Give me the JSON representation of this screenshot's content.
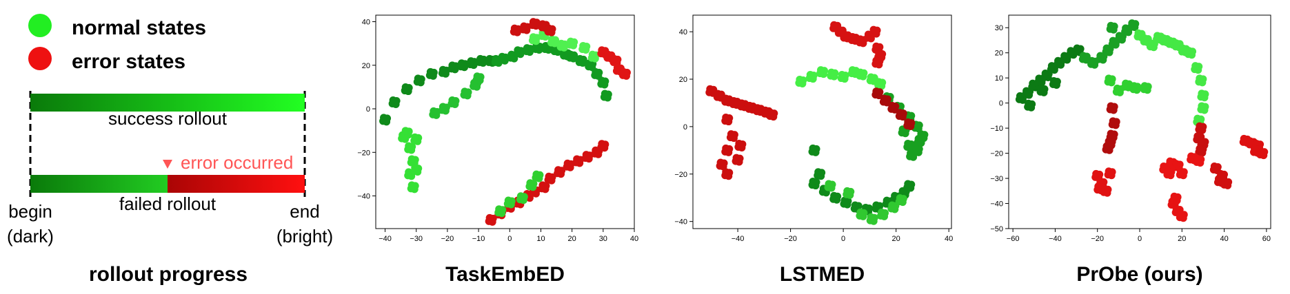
{
  "legend": {
    "normal_label": "normal states",
    "error_label": "error states",
    "normal_color": "#22ee22",
    "error_color": "#ee1111",
    "success_label": "success rollout",
    "failed_label": "failed rollout",
    "error_marker_label": "error occurred",
    "error_marker_color": "#ff5555",
    "begin_label": "begin",
    "begin_sub": "(dark)",
    "end_label": "end",
    "end_sub": "(bright)",
    "caption": "rollout progress",
    "gradient": {
      "success_dark": "#0a7a0a",
      "success_bright": "#22ff22",
      "failed_dark_green": "#0a7a0a",
      "failed_mid_green": "#22cc22",
      "failed_dark_red": "#aa0505",
      "failed_bright_red": "#ff1010",
      "error_fraction": 0.5
    }
  },
  "chart_data": [
    {
      "type": "scatter",
      "title": "TaskEmbED",
      "xlim": [
        -43,
        40
      ],
      "ylim": [
        -55,
        43
      ],
      "xticks": [
        -40,
        -30,
        -20,
        -10,
        0,
        10,
        20,
        30,
        40
      ],
      "yticks": [
        -40,
        -20,
        0,
        20,
        40
      ],
      "clusters": [
        {
          "state": "normal",
          "shade": "#0f8a1a",
          "points": [
            [
              -40,
              -5
            ],
            [
              -37,
              3
            ],
            [
              -33,
              9
            ],
            [
              -29,
              13
            ],
            [
              -25,
              16
            ],
            [
              -21,
              17
            ],
            [
              -18,
              19
            ],
            [
              -15,
              20
            ],
            [
              -12,
              21
            ],
            [
              -9,
              22
            ],
            [
              -6,
              22
            ]
          ]
        },
        {
          "state": "normal",
          "shade": "#129a20",
          "points": [
            [
              -4,
              22
            ],
            [
              -2,
              23
            ],
            [
              1,
              24
            ],
            [
              3,
              26
            ],
            [
              6,
              27
            ],
            [
              9,
              28
            ],
            [
              12,
              28
            ],
            [
              15,
              27
            ],
            [
              18,
              25
            ],
            [
              20,
              24
            ],
            [
              23,
              22
            ],
            [
              26,
              20
            ],
            [
              28,
              16
            ],
            [
              30,
              12
            ],
            [
              31,
              6
            ]
          ]
        },
        {
          "state": "normal",
          "shade": "#35e035",
          "points": [
            [
              -34,
              -13
            ],
            [
              -32,
              -18
            ],
            [
              -31,
              -24
            ],
            [
              -32,
              -30
            ],
            [
              -31,
              -36
            ],
            [
              -33,
              -11
            ],
            [
              -30,
              -14
            ],
            [
              -30,
              -28
            ]
          ]
        },
        {
          "state": "normal",
          "shade": "#25c030",
          "points": [
            [
              -24,
              -2
            ],
            [
              -21,
              0
            ],
            [
              -18,
              3
            ],
            [
              -14,
              7
            ],
            [
              -11,
              11
            ],
            [
              -10,
              14
            ]
          ]
        },
        {
          "state": "normal",
          "shade": "#50f050",
          "points": [
            [
              8,
              32
            ],
            [
              11,
              34
            ],
            [
              14,
              31
            ],
            [
              17,
              29
            ],
            [
              20,
              30
            ],
            [
              24,
              28
            ],
            [
              27,
              24
            ]
          ]
        },
        {
          "state": "error",
          "shade": "#cc1010",
          "points": [
            [
              2,
              36
            ],
            [
              5,
              37
            ],
            [
              8,
              39
            ],
            [
              11,
              38
            ],
            [
              13,
              36
            ]
          ]
        },
        {
          "state": "error",
          "shade": "#e01515",
          "points": [
            [
              30,
              26
            ],
            [
              32,
              24
            ],
            [
              34,
              22
            ],
            [
              35,
              18
            ],
            [
              37,
              16
            ]
          ]
        },
        {
          "state": "error",
          "shade": "#d41010",
          "points": [
            [
              -6,
              -51
            ],
            [
              -3,
              -48
            ],
            [
              0,
              -45
            ],
            [
              3,
              -43
            ],
            [
              6,
              -40
            ],
            [
              8,
              -38
            ],
            [
              11,
              -36
            ],
            [
              13,
              -32
            ],
            [
              16,
              -29
            ],
            [
              19,
              -26
            ],
            [
              22,
              -24
            ],
            [
              25,
              -22
            ],
            [
              28,
              -20
            ],
            [
              30,
              -17
            ]
          ]
        },
        {
          "state": "normal",
          "shade": "#30d030",
          "points": [
            [
              -3,
              -47
            ],
            [
              0,
              -43
            ],
            [
              4,
              -41
            ],
            [
              7,
              -35
            ],
            [
              9,
              -31
            ]
          ]
        }
      ]
    },
    {
      "type": "scatter",
      "title": "LSTMED",
      "xlim": [
        -57,
        41
      ],
      "ylim": [
        -43,
        47
      ],
      "xticks": [
        -40,
        -20,
        0,
        20,
        40
      ],
      "yticks": [
        -40,
        -20,
        0,
        20,
        40
      ],
      "clusters": [
        {
          "state": "error",
          "shade": "#cc0e0e",
          "points": [
            [
              -50,
              15
            ],
            [
              -47,
              13
            ],
            [
              -44,
              11
            ],
            [
              -41,
              10
            ],
            [
              -38,
              9
            ],
            [
              -35,
              8
            ],
            [
              -32,
              7
            ],
            [
              -29,
              6
            ],
            [
              -27,
              5
            ],
            [
              -44,
              3
            ],
            [
              -42,
              -4
            ],
            [
              -44,
              -10
            ],
            [
              -46,
              -16
            ],
            [
              -44,
              -20
            ],
            [
              -40,
              -14
            ],
            [
              -39,
              -8
            ]
          ]
        },
        {
          "state": "error",
          "shade": "#d61212",
          "points": [
            [
              -3,
              42
            ],
            [
              -1,
              40
            ],
            [
              1,
              38
            ],
            [
              4,
              37
            ],
            [
              7,
              36
            ],
            [
              10,
              38
            ],
            [
              12,
              40
            ],
            [
              13,
              33
            ],
            [
              14,
              30
            ],
            [
              13,
              27
            ]
          ]
        },
        {
          "state": "normal",
          "shade": "#45ee45",
          "points": [
            [
              -16,
              19
            ],
            [
              -12,
              21
            ],
            [
              -8,
              23
            ],
            [
              -4,
              22
            ],
            [
              0,
              21
            ],
            [
              4,
              23
            ],
            [
              7,
              22
            ],
            [
              11,
              20
            ],
            [
              14,
              18
            ]
          ]
        },
        {
          "state": "normal",
          "shade": "#18a020",
          "points": [
            [
              17,
              12
            ],
            [
              21,
              8
            ],
            [
              25,
              4
            ],
            [
              28,
              0
            ],
            [
              30,
              -4
            ],
            [
              28,
              -10
            ],
            [
              25,
              -8
            ],
            [
              23,
              -2
            ],
            [
              26,
              -12
            ],
            [
              29,
              -6
            ]
          ]
        },
        {
          "state": "error",
          "shade": "#a80a0a",
          "points": [
            [
              13,
              14
            ],
            [
              16,
              11
            ],
            [
              19,
              8
            ],
            [
              22,
              5
            ],
            [
              25,
              1
            ]
          ]
        },
        {
          "state": "normal",
          "shade": "#0f8a1a",
          "points": [
            [
              -11,
              -10
            ],
            [
              -9,
              -20
            ],
            [
              -11,
              -24
            ],
            [
              -7,
              -27
            ],
            [
              -3,
              -30
            ],
            [
              1,
              -32
            ],
            [
              5,
              -34
            ],
            [
              9,
              -35
            ],
            [
              13,
              -34
            ],
            [
              17,
              -32
            ],
            [
              20,
              -30
            ],
            [
              23,
              -28
            ],
            [
              25,
              -25
            ]
          ]
        },
        {
          "state": "normal",
          "shade": "#30c830",
          "points": [
            [
              7,
              -37
            ],
            [
              11,
              -39
            ],
            [
              15,
              -37
            ],
            [
              19,
              -34
            ],
            [
              22,
              -31
            ],
            [
              -5,
              -25
            ],
            [
              2,
              -28
            ]
          ]
        }
      ]
    },
    {
      "type": "scatter",
      "title": "PrObe (ours)",
      "xlim": [
        -62,
        62
      ],
      "ylim": [
        -50,
        35
      ],
      "xticks": [
        -60,
        -40,
        -20,
        0,
        20,
        40,
        60
      ],
      "yticks": [
        -50,
        -40,
        -30,
        -20,
        -10,
        0,
        10,
        20,
        30
      ],
      "clusters": [
        {
          "state": "normal",
          "shade": "#0c7a14",
          "points": [
            [
              -56,
              2
            ],
            [
              -53,
              4
            ],
            [
              -50,
              7
            ],
            [
              -47,
              9
            ],
            [
              -44,
              11
            ],
            [
              -41,
              14
            ],
            [
              -38,
              16
            ],
            [
              -35,
              18
            ],
            [
              -32,
              20
            ],
            [
              -29,
              21
            ],
            [
              -52,
              -1
            ],
            [
              -46,
              5
            ],
            [
              -40,
              8
            ]
          ]
        },
        {
          "state": "normal",
          "shade": "#1aa024",
          "points": [
            [
              -26,
              18
            ],
            [
              -22,
              16
            ],
            [
              -18,
              18
            ],
            [
              -15,
              21
            ],
            [
              -12,
              24
            ],
            [
              -9,
              26
            ],
            [
              -6,
              29
            ],
            [
              -3,
              31
            ],
            [
              -13,
              30
            ]
          ]
        },
        {
          "state": "normal",
          "shade": "#45e845",
          "points": [
            [
              0,
              27
            ],
            [
              3,
              25
            ],
            [
              6,
              23
            ],
            [
              9,
              26
            ],
            [
              12,
              25
            ],
            [
              15,
              24
            ],
            [
              18,
              23
            ],
            [
              21,
              21
            ],
            [
              24,
              20
            ],
            [
              27,
              14
            ],
            [
              29,
              9
            ],
            [
              30,
              3
            ],
            [
              30,
              -2
            ],
            [
              28,
              -7
            ]
          ]
        },
        {
          "state": "normal",
          "shade": "#30d030",
          "points": [
            [
              -10,
              5
            ],
            [
              -6,
              7
            ],
            [
              -2,
              6
            ],
            [
              3,
              6
            ],
            [
              -14,
              9
            ]
          ]
        },
        {
          "state": "error",
          "shade": "#b00c0c",
          "points": [
            [
              -13,
              -2
            ],
            [
              -12,
              -8
            ],
            [
              -13,
              -13
            ],
            [
              -15,
              -18
            ],
            [
              -14,
              -16
            ]
          ]
        },
        {
          "state": "error",
          "shade": "#c80f0f",
          "points": [
            [
              29,
              -10
            ],
            [
              28,
              -14
            ],
            [
              30,
              -16
            ],
            [
              29,
              -19
            ]
          ]
        },
        {
          "state": "error",
          "shade": "#e01212",
          "points": [
            [
              -20,
              -29
            ],
            [
              -18,
              -32
            ],
            [
              -16,
              -35
            ],
            [
              -19,
              -34
            ],
            [
              -14,
              -28
            ]
          ]
        },
        {
          "state": "error",
          "shade": "#e81414",
          "points": [
            [
              12,
              -26
            ],
            [
              15,
              -24
            ],
            [
              18,
              -25
            ],
            [
              20,
              -28
            ],
            [
              14,
              -28
            ],
            [
              25,
              -22
            ],
            [
              28,
              -23
            ]
          ]
        },
        {
          "state": "error",
          "shade": "#d01010",
          "points": [
            [
              36,
              -26
            ],
            [
              39,
              -29
            ],
            [
              41,
              -32
            ],
            [
              38,
              -31
            ]
          ]
        },
        {
          "state": "error",
          "shade": "#e61313",
          "points": [
            [
              16,
              -40
            ],
            [
              18,
              -43
            ],
            [
              20,
              -45
            ],
            [
              17,
              -38
            ]
          ]
        },
        {
          "state": "error",
          "shade": "#dd1111",
          "points": [
            [
              50,
              -15
            ],
            [
              53,
              -16
            ],
            [
              56,
              -17
            ],
            [
              58,
              -20
            ],
            [
              55,
              -19
            ]
          ]
        }
      ]
    }
  ]
}
